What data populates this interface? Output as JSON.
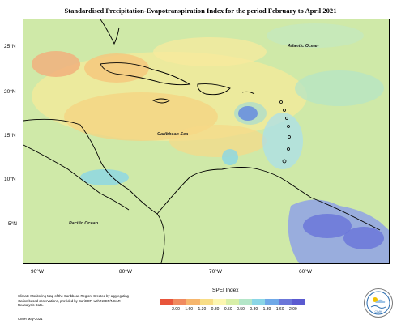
{
  "title": "Standardised Precipitation-Evapotranspiration Index for the period February to April 2021",
  "map": {
    "lat_labels": [
      "25°N",
      "20°N",
      "15°N",
      "10°N",
      "5°N"
    ],
    "lon_labels": [
      "90°W",
      "80°W",
      "70°W",
      "60°W"
    ],
    "region_labels": {
      "atlantic": "Atlantic Ocean",
      "caribbean": "Caribbean Sea",
      "pacific": "Pacific Ocean"
    }
  },
  "legend": {
    "title": "SPEI Index",
    "ticks": [
      "-2.00",
      "-1.60",
      "-1.30",
      "-0.80",
      "-0.50",
      "0.50",
      "0.80",
      "1.30",
      "1.60",
      "2.00"
    ],
    "colors": [
      "#e8553b",
      "#f08a5f",
      "#f6b66d",
      "#f8dd86",
      "#fdf6b0",
      "#d8efa8",
      "#b4e6c8",
      "#8ad6e6",
      "#6fa9e8",
      "#6b77d9",
      "#5a5ad0"
    ]
  },
  "credits": {
    "text": "Climate Monitoring Map of the Caribbean Region. Created by aggregating station based observations, provided by CariCOF, with NCEP/NCAR Reanalysis Data.",
    "date": "CIMH May-2021"
  },
  "logo": {
    "name": "CIMH"
  }
}
